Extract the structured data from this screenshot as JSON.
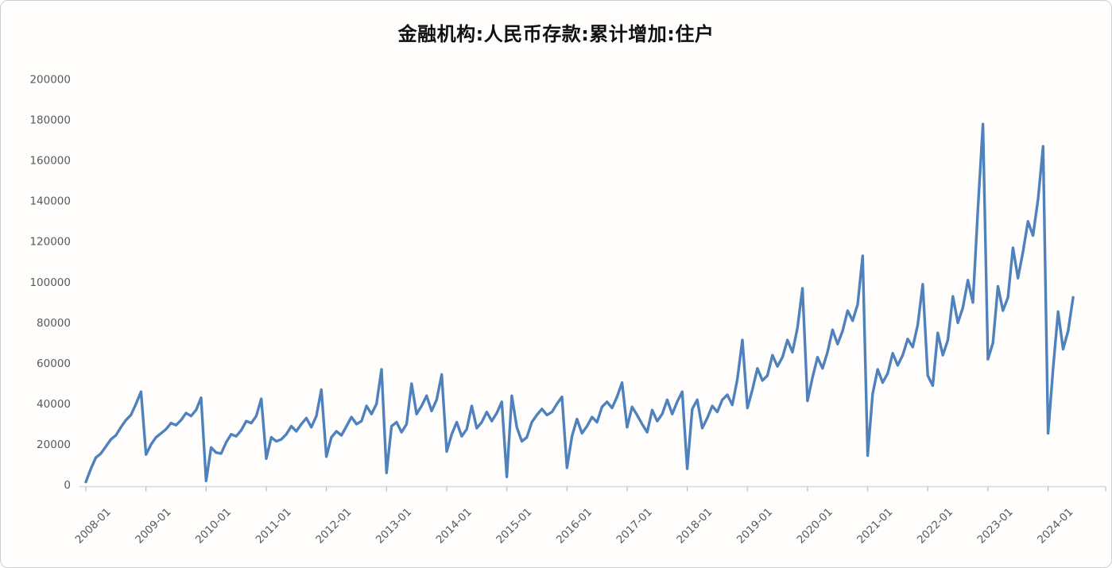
{
  "title": "金融机构:人民币存款:累计增加:住户",
  "colors": {
    "line": "#4f81bd",
    "axis_line": "#d9d9d9",
    "tick_mark": "#c0c0c0",
    "tick_label": "#595959",
    "title_text": "#111111",
    "background": "#fffefc",
    "card_border": "#cfcfcf"
  },
  "chart_data": {
    "type": "line",
    "title": "金融机构:人民币存款:累计增加:住户",
    "xlabel": "",
    "ylabel": "",
    "ylim": [
      0,
      200000
    ],
    "grid": false,
    "legend": "none",
    "x_frequency": "monthly",
    "x_start": "2008-01",
    "x_end": "2024-06",
    "x_tick_labels": [
      "2008-01",
      "2009-01",
      "2010-01",
      "2011-01",
      "2012-01",
      "2013-01",
      "2014-01",
      "2015-01",
      "2016-01",
      "2017-01",
      "2018-01",
      "2019-01",
      "2020-01",
      "2021-01",
      "2022-01",
      "2023-01",
      "2024-01"
    ],
    "y_tick_labels": [
      "0",
      "20000",
      "40000",
      "60000",
      "80000",
      "100000",
      "120000",
      "140000",
      "160000",
      "180000",
      "200000"
    ],
    "y_tick_values": [
      0,
      20000,
      40000,
      60000,
      80000,
      100000,
      120000,
      140000,
      160000,
      180000,
      200000
    ],
    "series": [
      {
        "name": "金融机构:人民币存款:累计增加:住户",
        "values": [
          1500,
          8000,
          13500,
          15500,
          19000,
          22500,
          24500,
          28500,
          32000,
          34500,
          40000,
          46000,
          15000,
          20000,
          23500,
          25500,
          27500,
          30500,
          29500,
          32000,
          35500,
          34000,
          37000,
          43000,
          2000,
          18500,
          16000,
          15500,
          21000,
          25000,
          24000,
          27000,
          31500,
          30500,
          34000,
          42500,
          13000,
          23500,
          21500,
          22500,
          25000,
          29000,
          26500,
          30000,
          33000,
          28500,
          34000,
          47000,
          14000,
          23500,
          26500,
          24500,
          29000,
          33500,
          30000,
          31500,
          39000,
          35000,
          40000,
          57000,
          6000,
          29000,
          31000,
          26000,
          30000,
          50000,
          35000,
          39000,
          44000,
          36500,
          42000,
          54500,
          16500,
          25000,
          31000,
          24000,
          27500,
          39000,
          28000,
          31000,
          36000,
          31500,
          35500,
          41000,
          4000,
          44000,
          28500,
          21500,
          23500,
          31000,
          34500,
          37500,
          34500,
          36000,
          40000,
          43500,
          8500,
          24000,
          32500,
          25500,
          29000,
          33500,
          31000,
          38500,
          41000,
          38000,
          43500,
          50500,
          28500,
          38500,
          34500,
          30000,
          26000,
          37000,
          31500,
          35000,
          42000,
          35000,
          41000,
          46000,
          8000,
          37500,
          42000,
          28000,
          33000,
          39000,
          36000,
          42000,
          44500,
          39500,
          52000,
          71500,
          38000,
          47000,
          57500,
          51500,
          54000,
          64000,
          58500,
          63000,
          71500,
          65500,
          77500,
          97000,
          41500,
          53000,
          63000,
          57500,
          65500,
          76500,
          69500,
          76000,
          86000,
          81000,
          89000,
          113000,
          14500,
          45000,
          57000,
          50500,
          55000,
          65000,
          59000,
          64000,
          72000,
          68000,
          79000,
          99000,
          54000,
          49000,
          75000,
          64000,
          71500,
          93000,
          80000,
          87500,
          101000,
          90000,
          136000,
          178000,
          62000,
          70000,
          98000,
          86000,
          92500,
          117000,
          102000,
          115000,
          130000,
          123000,
          141000,
          167000,
          25500,
          57500,
          85500,
          67000,
          76000,
          92500
        ]
      }
    ]
  }
}
